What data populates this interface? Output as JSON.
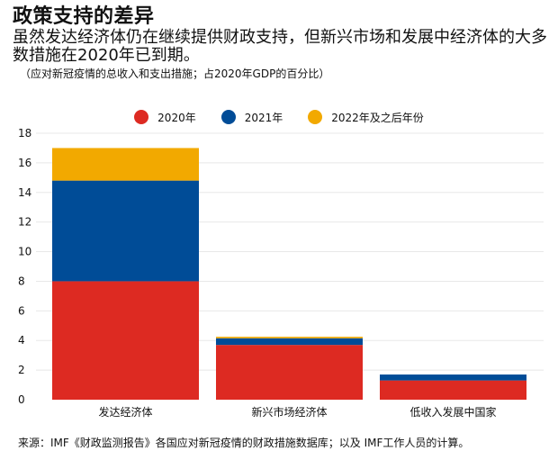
{
  "header": {
    "title": "政策支持的差异",
    "subtitle": "虽然发达经济体仍在继续提供财政支持，但新兴市场和发展中经济体的大多数措施在2020年已到期。",
    "note": "（应对新冠疫情的总收入和支出措施；占2020年GDP的百分比）"
  },
  "footer": {
    "source": "来源：IMF《财政监测报告》各国应对新冠疫情的财政措施数据库；以及 IMF工作人员的计算。"
  },
  "colors": {
    "s2020": "#dd2a22",
    "s2021": "#004c97",
    "s2022": "#f2a900",
    "grid": "#e8e8e8"
  },
  "chart_data": {
    "type": "bar",
    "stacked": true,
    "categories": [
      "发达经济体",
      "新兴市场经济体",
      "低收入发展中国家"
    ],
    "series": [
      {
        "name": "2020年",
        "color": "#dd2a22",
        "values": [
          8.0,
          3.7,
          1.3
        ]
      },
      {
        "name": "2021年",
        "color": "#004c97",
        "values": [
          6.8,
          0.45,
          0.4
        ]
      },
      {
        "name": "2022年及之后年份",
        "color": "#f2a900",
        "values": [
          2.2,
          0.1,
          0.0
        ]
      }
    ],
    "ylim": [
      0,
      18
    ],
    "yticks": [
      "0",
      "2",
      "4",
      "6",
      "8",
      "10",
      "12",
      "14",
      "16",
      "18"
    ],
    "grid": true,
    "legend_position": "top-center"
  }
}
